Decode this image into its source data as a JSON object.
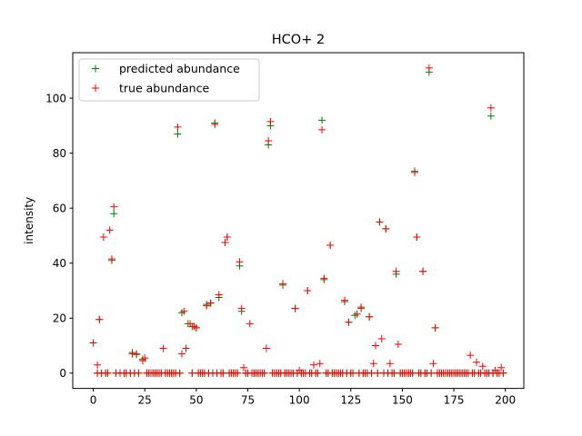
{
  "chart_data": {
    "type": "scatter",
    "title": "HCO+ 2",
    "xlabel": "",
    "ylabel": "intensity",
    "xlim": [
      -9.95,
      208.95
    ],
    "ylim": [
      -5.55,
      116.55
    ],
    "xticks": [
      0,
      25,
      50,
      75,
      100,
      125,
      150,
      175,
      200
    ],
    "yticks": [
      0,
      20,
      40,
      60,
      80,
      100
    ],
    "grid": false,
    "legend_position": "top-left",
    "marker": "+",
    "series": [
      {
        "name": "predicted abundance",
        "color": "#008000",
        "points": [
          [
            3,
            19.5
          ],
          [
            9,
            41
          ],
          [
            10,
            58
          ],
          [
            19,
            7.5
          ],
          [
            21,
            6.8
          ],
          [
            24,
            5
          ],
          [
            41,
            87
          ],
          [
            43,
            22
          ],
          [
            46,
            18
          ],
          [
            48,
            17
          ],
          [
            50,
            16.5
          ],
          [
            55,
            25
          ],
          [
            57,
            25.5
          ],
          [
            59,
            91
          ],
          [
            61,
            27.5
          ],
          [
            64,
            47.5
          ],
          [
            65,
            49.5
          ],
          [
            71,
            39
          ],
          [
            72,
            22.5
          ],
          [
            85,
            83
          ],
          [
            86,
            90
          ],
          [
            92,
            32
          ],
          [
            98,
            23.5
          ],
          [
            104,
            30
          ],
          [
            111,
            92
          ],
          [
            112,
            34
          ],
          [
            115,
            46.5
          ],
          [
            122,
            26
          ],
          [
            124,
            18.5
          ],
          [
            127,
            21
          ],
          [
            130,
            23.5
          ],
          [
            134,
            20.5
          ],
          [
            139,
            55
          ],
          [
            142,
            52.5
          ],
          [
            147,
            36
          ],
          [
            156,
            73.5
          ],
          [
            157,
            49.5
          ],
          [
            160,
            37
          ],
          [
            163,
            109.5
          ],
          [
            166,
            16.5
          ],
          [
            193,
            93.5
          ]
        ]
      },
      {
        "name": "true abundance",
        "color": "#ff0000",
        "points": [
          [
            0,
            11
          ],
          [
            2,
            3
          ],
          [
            3,
            19.5
          ],
          [
            5,
            49.5
          ],
          [
            8,
            52
          ],
          [
            9,
            41.5
          ],
          [
            10,
            60.5
          ],
          [
            19,
            7
          ],
          [
            21,
            7
          ],
          [
            24,
            4.5
          ],
          [
            25,
            5.5
          ],
          [
            34,
            9
          ],
          [
            41,
            89.5
          ],
          [
            43,
            7
          ],
          [
            44,
            22.5
          ],
          [
            45,
            9
          ],
          [
            47,
            18
          ],
          [
            49,
            17
          ],
          [
            50,
            16.5
          ],
          [
            55,
            24.5
          ],
          [
            57,
            25.5
          ],
          [
            59,
            90.5
          ],
          [
            61,
            28.5
          ],
          [
            64,
            47.5
          ],
          [
            65,
            49.5
          ],
          [
            71,
            40.5
          ],
          [
            72,
            23.5
          ],
          [
            73,
            2
          ],
          [
            76,
            18
          ],
          [
            84,
            9
          ],
          [
            85,
            84.5
          ],
          [
            86,
            91.5
          ],
          [
            92,
            32.5
          ],
          [
            98,
            23.5
          ],
          [
            100,
            1
          ],
          [
            104,
            30
          ],
          [
            107,
            3
          ],
          [
            110,
            3.5
          ],
          [
            111,
            88.5
          ],
          [
            112,
            34.5
          ],
          [
            115,
            46.5
          ],
          [
            122,
            26.5
          ],
          [
            124,
            18.5
          ],
          [
            128,
            21.5
          ],
          [
            130,
            24
          ],
          [
            134,
            20.5
          ],
          [
            136,
            3.5
          ],
          [
            137,
            10
          ],
          [
            139,
            55
          ],
          [
            140,
            12.5
          ],
          [
            142,
            52.5
          ],
          [
            144,
            3.5
          ],
          [
            147,
            37
          ],
          [
            148,
            10.5
          ],
          [
            156,
            73
          ],
          [
            157,
            49.5
          ],
          [
            160,
            37
          ],
          [
            163,
            111
          ],
          [
            165,
            3.5
          ],
          [
            166,
            16.5
          ],
          [
            183,
            6.5
          ],
          [
            186,
            4
          ],
          [
            189,
            2.5
          ],
          [
            193,
            96.5
          ],
          [
            195,
            1
          ],
          [
            198,
            2
          ]
        ]
      }
    ],
    "zero_band": {
      "note_series": "both",
      "x": [
        2,
        4,
        6,
        7,
        11,
        13,
        15,
        16,
        18,
        20,
        22,
        26,
        27,
        28,
        29,
        30,
        31,
        32,
        33,
        35,
        36,
        37,
        38,
        39,
        40,
        42,
        48,
        51,
        52,
        53,
        54,
        56,
        58,
        60,
        62,
        63,
        66,
        67,
        68,
        69,
        70,
        74,
        75,
        77,
        78,
        79,
        80,
        81,
        82,
        83,
        87,
        88,
        89,
        90,
        91,
        93,
        94,
        95,
        96,
        97,
        99,
        101,
        102,
        103,
        105,
        106,
        108,
        109,
        113,
        114,
        116,
        117,
        118,
        119,
        120,
        121,
        123,
        125,
        126,
        129,
        131,
        132,
        133,
        135,
        138,
        141,
        143,
        145,
        146,
        149,
        150,
        151,
        152,
        153,
        154,
        155,
        158,
        159,
        161,
        162,
        164,
        167,
        168,
        169,
        170,
        171,
        172,
        173,
        174,
        175,
        176,
        177,
        178,
        179,
        180,
        181,
        182,
        184,
        185,
        187,
        188,
        190,
        191,
        192,
        194,
        196,
        197,
        199
      ],
      "y": 0
    }
  }
}
